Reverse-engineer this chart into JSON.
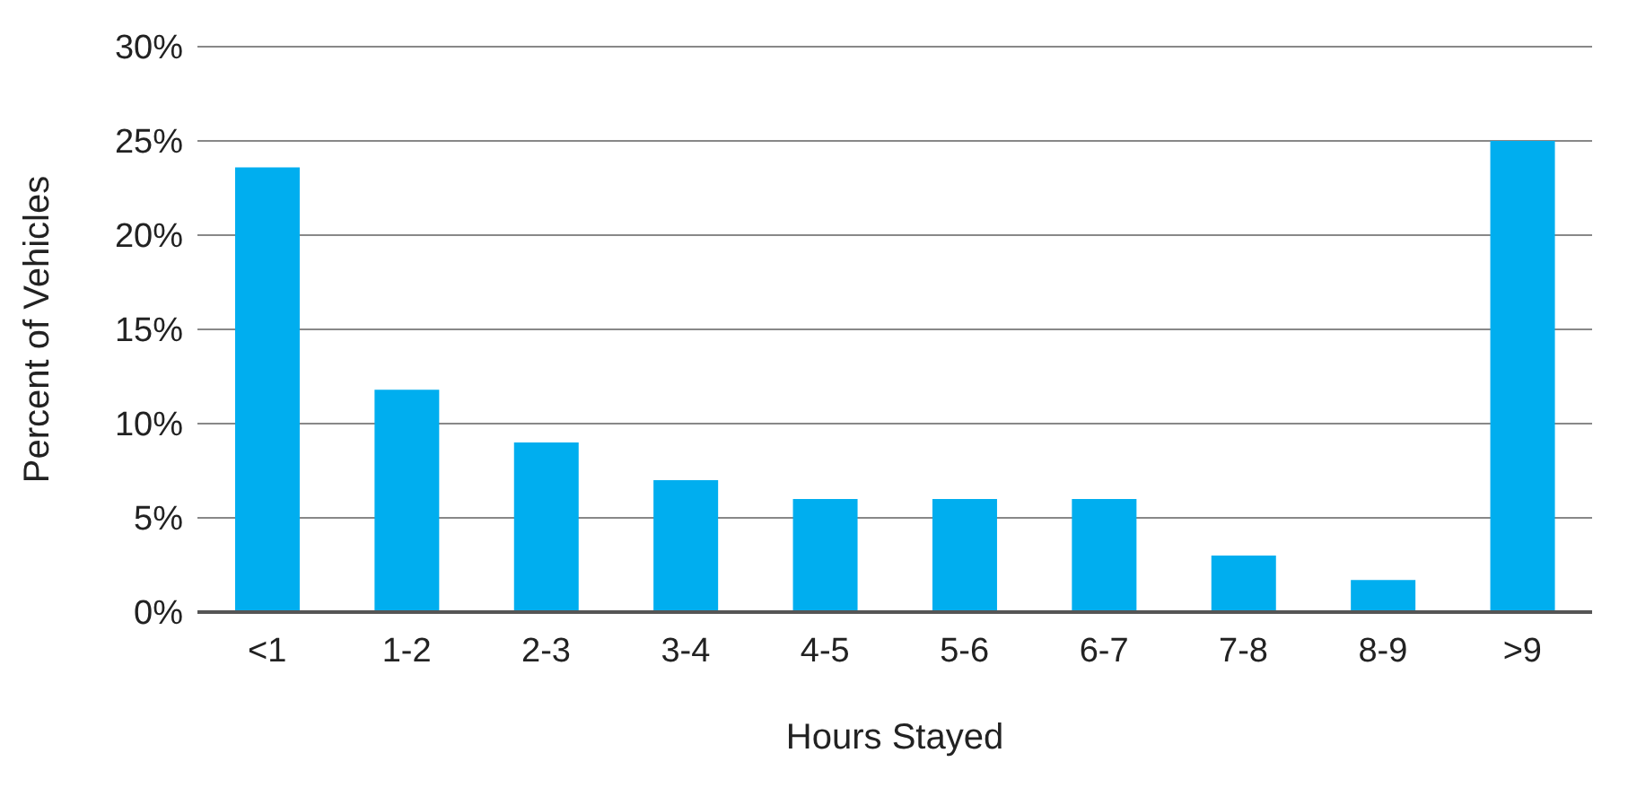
{
  "chart_data": {
    "type": "bar",
    "xlabel": "Hours Stayed",
    "ylabel": "Percent of Vehicles",
    "categories": [
      "<1",
      "1-2",
      "2-3",
      "3-4",
      "4-5",
      "5-6",
      "6-7",
      "7-8",
      "8-9",
      ">9"
    ],
    "values": [
      23.6,
      11.8,
      9.0,
      7.0,
      6.0,
      6.0,
      6.0,
      3.0,
      1.7,
      25.0
    ],
    "color": "#00aeef",
    "ylim": [
      0,
      30
    ],
    "yticks": [
      {
        "value": 0,
        "label": "0%"
      },
      {
        "value": 5,
        "label": "5%"
      },
      {
        "value": 10,
        "label": "10%"
      },
      {
        "value": 15,
        "label": "15%"
      },
      {
        "value": 20,
        "label": "20%"
      },
      {
        "value": 25,
        "label": "25%"
      },
      {
        "value": 30,
        "label": "30%"
      }
    ],
    "grid": "y"
  }
}
